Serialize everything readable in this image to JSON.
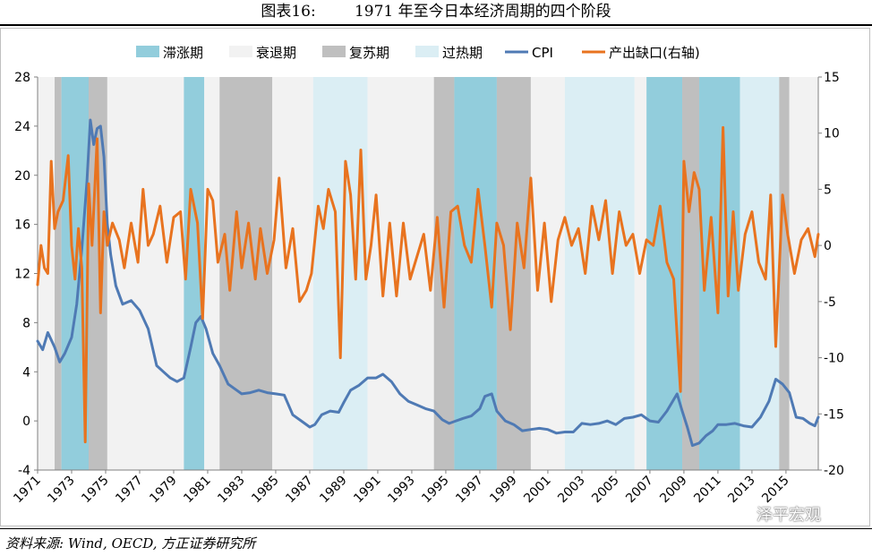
{
  "figure_title": "图表16:        1971 年至今日本经济周期的四个阶段",
  "source_note": "资料来源: Wind, OECD, 方正证券研究所",
  "watermark": "泽平宏观",
  "colors": {
    "stagflation": "#92cddc",
    "recession": "#f2f2f2",
    "recovery": "#bfbfbf",
    "overheat": "#dbeef4",
    "cpi": "#4f7ab4",
    "output_gap": "#e8731f"
  },
  "chart_data": {
    "type": "line",
    "x_ticks": [
      "1971",
      "1973",
      "1975",
      "1977",
      "1979",
      "1981",
      "1983",
      "1985",
      "1987",
      "1989",
      "1991",
      "1993",
      "1995",
      "1997",
      "1999",
      "2001",
      "2003",
      "2005",
      "2007",
      "2009",
      "2011",
      "2013",
      "2015"
    ],
    "x_range": [
      1971,
      2016.9
    ],
    "left_axis": {
      "ticks": [
        -4,
        0,
        4,
        8,
        12,
        16,
        20,
        24,
        28
      ],
      "range": [
        -4,
        28
      ]
    },
    "right_axis": {
      "ticks": [
        -20,
        -15,
        -10,
        -5,
        0,
        5,
        10,
        15
      ],
      "range": [
        -20,
        15
      ]
    },
    "legend": [
      {
        "key": "stagflation",
        "label": "滞涨期",
        "kind": "band"
      },
      {
        "key": "recession",
        "label": "衰退期",
        "kind": "band"
      },
      {
        "key": "recovery",
        "label": "复苏期",
        "kind": "band"
      },
      {
        "key": "overheat",
        "label": "过热期",
        "kind": "band"
      },
      {
        "key": "cpi",
        "label": "CPI",
        "kind": "line"
      },
      {
        "key": "output_gap",
        "label": "产出缺口(右轴)",
        "kind": "line"
      }
    ],
    "phases": [
      {
        "phase": "recession",
        "start": 1971.0,
        "end": 1972.0
      },
      {
        "phase": "recovery",
        "start": 1972.0,
        "end": 1972.4
      },
      {
        "phase": "stagflation",
        "start": 1972.4,
        "end": 1974.0
      },
      {
        "phase": "recovery",
        "start": 1974.0,
        "end": 1975.1
      },
      {
        "phase": "recession",
        "start": 1975.1,
        "end": 1979.6
      },
      {
        "phase": "stagflation",
        "start": 1979.6,
        "end": 1980.8
      },
      {
        "phase": "recession",
        "start": 1980.8,
        "end": 1981.7
      },
      {
        "phase": "recovery",
        "start": 1981.7,
        "end": 1984.8
      },
      {
        "phase": "recession",
        "start": 1984.8,
        "end": 1987.2
      },
      {
        "phase": "overheat",
        "start": 1987.2,
        "end": 1990.4
      },
      {
        "phase": "recession",
        "start": 1990.4,
        "end": 1994.3
      },
      {
        "phase": "recovery",
        "start": 1994.3,
        "end": 1995.5
      },
      {
        "phase": "stagflation",
        "start": 1995.5,
        "end": 1998.0
      },
      {
        "phase": "recovery",
        "start": 1998.0,
        "end": 2000.0
      },
      {
        "phase": "recession",
        "start": 2000.0,
        "end": 2002.0
      },
      {
        "phase": "overheat",
        "start": 2002.0,
        "end": 2006.1
      },
      {
        "phase": "recession",
        "start": 2006.1,
        "end": 2006.8
      },
      {
        "phase": "stagflation",
        "start": 2006.8,
        "end": 2008.9
      },
      {
        "phase": "recovery",
        "start": 2008.9,
        "end": 2009.9
      },
      {
        "phase": "stagflation",
        "start": 2009.9,
        "end": 2012.3
      },
      {
        "phase": "overheat",
        "start": 2012.3,
        "end": 2014.6
      },
      {
        "phase": "recovery",
        "start": 2014.6,
        "end": 2015.2
      },
      {
        "phase": "recession",
        "start": 2015.2,
        "end": 2016.9
      }
    ],
    "series": [
      {
        "name": "CPI",
        "axis": "left",
        "x": [
          1971.0,
          1971.3,
          1971.6,
          1972.0,
          1972.3,
          1972.6,
          1973.0,
          1973.3,
          1973.6,
          1973.9,
          1974.1,
          1974.3,
          1974.5,
          1974.7,
          1974.9,
          1975.1,
          1975.3,
          1975.6,
          1976.0,
          1976.5,
          1977.0,
          1977.5,
          1978.0,
          1978.4,
          1978.8,
          1979.2,
          1979.6,
          1980.0,
          1980.3,
          1980.6,
          1980.9,
          1981.3,
          1981.7,
          1982.2,
          1982.7,
          1983.0,
          1983.5,
          1984.0,
          1984.5,
          1985.0,
          1985.5,
          1986.0,
          1986.5,
          1987.0,
          1987.3,
          1987.7,
          1988.2,
          1988.7,
          1989.0,
          1989.4,
          1989.9,
          1990.4,
          1990.9,
          1991.3,
          1991.8,
          1992.3,
          1992.8,
          1993.3,
          1993.8,
          1994.3,
          1994.8,
          1995.2,
          1995.6,
          1996.0,
          1996.5,
          1997.0,
          1997.3,
          1997.7,
          1998.0,
          1998.5,
          1999.0,
          1999.5,
          2000.0,
          2000.5,
          2001.0,
          2001.5,
          2002.0,
          2002.5,
          2003.0,
          2003.5,
          2004.0,
          2004.5,
          2005.0,
          2005.5,
          2006.0,
          2006.5,
          2007.0,
          2007.5,
          2008.0,
          2008.3,
          2008.6,
          2008.9,
          2009.2,
          2009.5,
          2009.9,
          2010.3,
          2010.7,
          2011.0,
          2011.5,
          2012.0,
          2012.5,
          2013.0,
          2013.5,
          2014.0,
          2014.4,
          2014.8,
          2015.2,
          2015.6,
          2016.0,
          2016.4,
          2016.7,
          2016.9
        ],
        "values": [
          6.5,
          5.8,
          7.2,
          6.0,
          4.8,
          5.5,
          6.8,
          9.5,
          14.0,
          19.5,
          24.5,
          22.5,
          23.8,
          24.0,
          21.5,
          16.0,
          13.5,
          11.0,
          9.5,
          9.8,
          9.0,
          7.5,
          4.5,
          4.0,
          3.5,
          3.2,
          3.5,
          6.0,
          8.0,
          8.5,
          7.5,
          5.5,
          4.5,
          3.0,
          2.5,
          2.2,
          2.3,
          2.5,
          2.3,
          2.2,
          2.1,
          0.5,
          0.0,
          -0.5,
          -0.3,
          0.5,
          0.8,
          0.7,
          1.5,
          2.5,
          2.9,
          3.5,
          3.5,
          3.8,
          3.2,
          2.2,
          1.6,
          1.3,
          1.0,
          0.8,
          0.1,
          -0.2,
          0.0,
          0.2,
          0.4,
          1.0,
          2.0,
          2.2,
          0.8,
          0.0,
          -0.3,
          -0.8,
          -0.7,
          -0.6,
          -0.7,
          -1.0,
          -0.9,
          -0.9,
          -0.2,
          -0.3,
          -0.2,
          0.0,
          -0.3,
          0.2,
          0.3,
          0.5,
          0.0,
          -0.1,
          0.8,
          1.5,
          2.2,
          0.8,
          -0.5,
          -2.0,
          -1.8,
          -1.2,
          -0.8,
          -0.3,
          -0.3,
          -0.2,
          -0.4,
          -0.5,
          0.3,
          1.6,
          3.4,
          3.0,
          2.3,
          0.3,
          0.2,
          -0.2,
          -0.4,
          0.3
        ]
      },
      {
        "name": "产出缺口(右轴)",
        "axis": "right",
        "x": [
          1971.0,
          1971.2,
          1971.4,
          1971.6,
          1971.8,
          1972.0,
          1972.2,
          1972.5,
          1972.8,
          1973.0,
          1973.2,
          1973.4,
          1973.6,
          1973.8,
          1974.0,
          1974.2,
          1974.5,
          1974.7,
          1974.9,
          1975.1,
          1975.4,
          1975.8,
          1976.1,
          1976.5,
          1976.9,
          1977.2,
          1977.5,
          1977.8,
          1978.2,
          1978.6,
          1979.0,
          1979.4,
          1979.7,
          1980.0,
          1980.4,
          1980.7,
          1981.0,
          1981.3,
          1981.6,
          1982.0,
          1982.3,
          1982.7,
          1983.0,
          1983.4,
          1983.8,
          1984.1,
          1984.5,
          1984.9,
          1985.2,
          1985.6,
          1986.0,
          1986.4,
          1986.8,
          1987.1,
          1987.5,
          1987.8,
          1988.1,
          1988.5,
          1988.8,
          1989.1,
          1989.4,
          1989.7,
          1990.0,
          1990.3,
          1990.6,
          1990.9,
          1991.3,
          1991.7,
          1992.1,
          1992.5,
          1992.9,
          1993.3,
          1993.7,
          1994.1,
          1994.5,
          1994.9,
          1995.3,
          1995.7,
          1996.1,
          1996.5,
          1996.9,
          1997.3,
          1997.7,
          1998.0,
          1998.4,
          1998.8,
          1999.2,
          1999.6,
          2000.0,
          2000.4,
          2000.8,
          2001.2,
          2001.6,
          2002.0,
          2002.4,
          2002.8,
          2003.2,
          2003.6,
          2004.0,
          2004.4,
          2004.8,
          2005.2,
          2005.6,
          2006.0,
          2006.4,
          2006.8,
          2007.2,
          2007.6,
          2008.0,
          2008.4,
          2008.8,
          2009.0,
          2009.3,
          2009.6,
          2009.9,
          2010.2,
          2010.6,
          2011.0,
          2011.3,
          2011.6,
          2011.9,
          2012.2,
          2012.6,
          2013.0,
          2013.4,
          2013.8,
          2014.1,
          2014.4,
          2014.8,
          2015.1,
          2015.5,
          2015.9,
          2016.3,
          2016.7,
          2016.9
        ],
        "values": [
          -3.5,
          0.0,
          -2.0,
          -2.5,
          7.5,
          1.5,
          3.0,
          4.0,
          8.0,
          0.0,
          -3.0,
          1.5,
          -2.0,
          -17.5,
          5.5,
          0.0,
          9.5,
          -6.0,
          3.0,
          0.0,
          2.0,
          0.5,
          -2.0,
          2.0,
          -1.5,
          5.0,
          0.0,
          1.0,
          3.5,
          -1.5,
          2.5,
          3.0,
          -3.0,
          5.0,
          2.0,
          -6.5,
          5.0,
          4.0,
          -1.5,
          1.0,
          -4.0,
          3.0,
          -2.0,
          2.0,
          -3.0,
          1.5,
          -2.5,
          0.5,
          6.0,
          -2.0,
          1.5,
          -5.0,
          -4.0,
          -2.5,
          3.5,
          1.5,
          5.0,
          3.0,
          -10.0,
          7.5,
          4.5,
          -3.0,
          8.5,
          -3.0,
          0.0,
          4.5,
          -4.5,
          2.0,
          -4.5,
          2.0,
          -3.0,
          -1.0,
          1.0,
          -4.0,
          2.5,
          -5.5,
          3.0,
          3.5,
          0.0,
          -1.5,
          5.0,
          0.0,
          -5.5,
          2.0,
          0.0,
          -7.5,
          2.0,
          -2.0,
          6.0,
          -4.0,
          2.0,
          -5.0,
          0.5,
          2.5,
          0.0,
          1.5,
          -2.5,
          3.5,
          0.5,
          4.0,
          -2.5,
          3.0,
          0.0,
          1.0,
          -2.5,
          0.5,
          0.0,
          3.5,
          -1.5,
          -3.0,
          -13.0,
          7.5,
          3.0,
          6.5,
          5.0,
          -4.0,
          2.5,
          -6.0,
          10.5,
          -4.5,
          3.0,
          -4.0,
          1.0,
          3.0,
          -1.5,
          -3.0,
          4.5,
          -9.0,
          4.5,
          1.0,
          -2.5,
          0.5,
          1.5,
          -1.0,
          1.0
        ]
      }
    ]
  }
}
